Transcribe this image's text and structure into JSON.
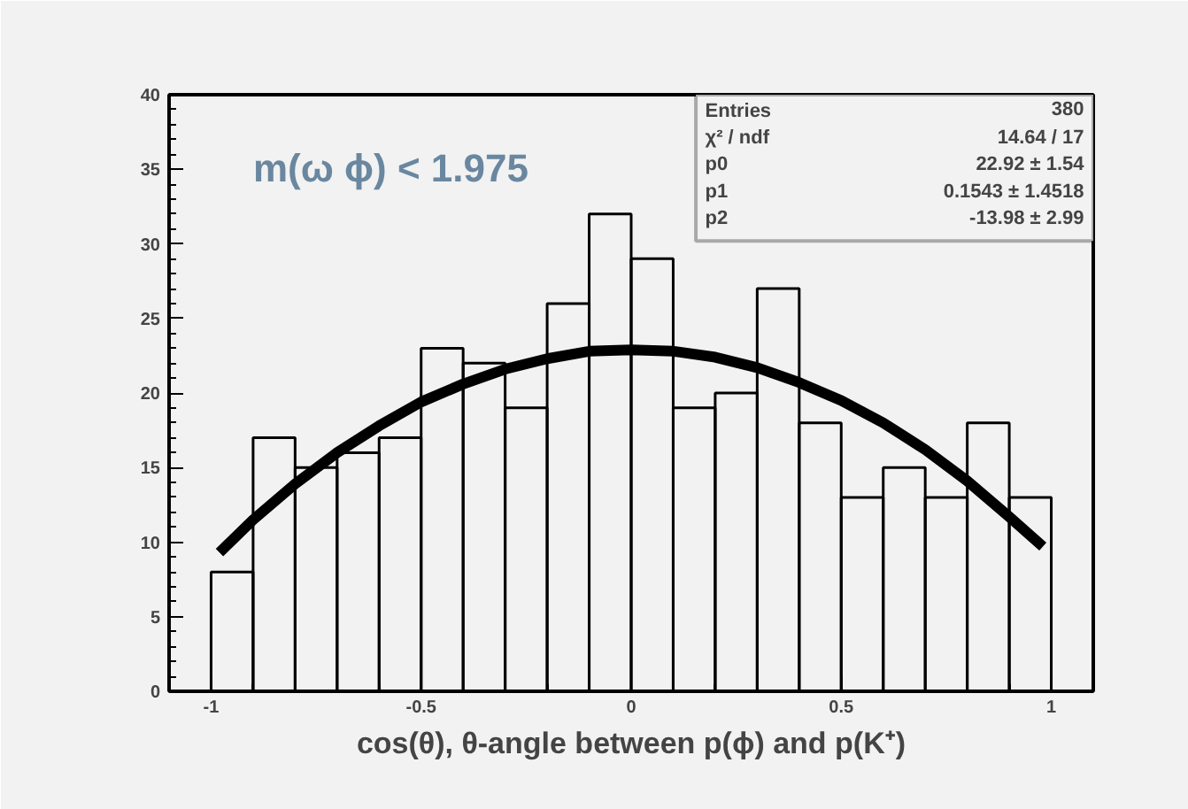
{
  "chart_data": {
    "type": "histogram",
    "title": "m(ω ϕ) < 1.975",
    "xlabel": "cos(θ), θ-angle between p(ϕ) and p(K⁺)",
    "xlim": [
      -1.1,
      1.1
    ],
    "xticks": [
      -1,
      -0.5,
      0,
      0.5,
      1
    ],
    "ylim": [
      0,
      40
    ],
    "yticks": [
      0,
      5,
      10,
      15,
      20,
      25,
      30,
      35,
      40
    ],
    "grid": false,
    "series": [
      {
        "color": "#000000",
        "bins": [
          -1,
          -0.9,
          -0.8,
          -0.7,
          -0.6,
          -0.5,
          -0.4,
          -0.3,
          -0.2,
          -0.1,
          0,
          0.1,
          0.2,
          0.3,
          0.4,
          0.5,
          0.6,
          0.7,
          0.8,
          0.9,
          1
        ],
        "values": [
          8,
          17,
          15,
          16,
          17,
          23,
          22,
          19,
          26,
          32,
          29,
          19,
          20,
          27,
          18,
          13,
          15,
          13,
          18,
          13
        ]
      },
      {
        "type": "line",
        "color": "#000000",
        "x": [
          -0.98,
          -0.9,
          -0.8,
          -0.7,
          -0.6,
          -0.5,
          -0.4,
          -0.3,
          -0.2,
          -0.1,
          0,
          0.1,
          0.2,
          0.3,
          0.4,
          0.5,
          0.6,
          0.7,
          0.8,
          0.9,
          0.98
        ],
        "values": [
          9.3,
          11.5,
          13.9,
          16.0,
          17.8,
          19.4,
          20.6,
          21.6,
          22.3,
          22.8,
          22.9,
          22.8,
          22.4,
          21.7,
          20.7,
          19.5,
          18.0,
          16.2,
          14.1,
          11.7,
          9.7
        ]
      }
    ],
    "annotations": [
      "Entries",
      "380",
      "χ² / ndf",
      "14.64 / 17",
      "p0",
      "22.92 ± 1.54",
      "p1",
      "0.1543 ± 1.4518",
      "p2",
      "-13.98 ± 2.99"
    ]
  }
}
